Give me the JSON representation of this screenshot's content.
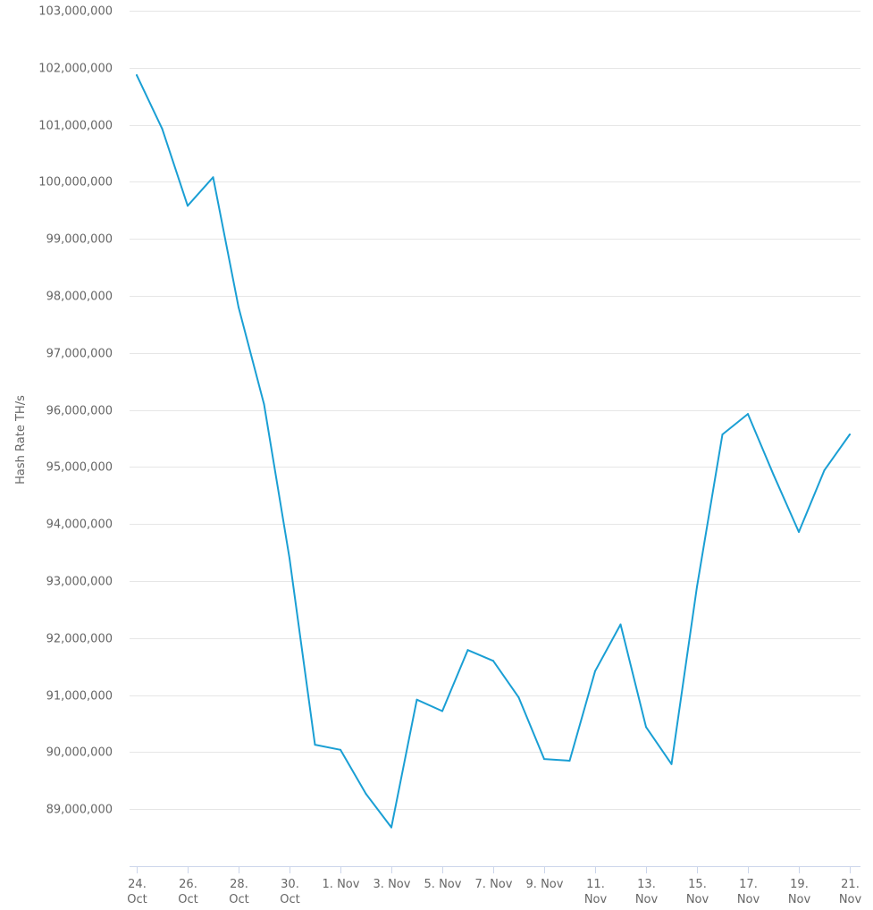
{
  "chart_data": {
    "type": "line",
    "ylabel": "Hash Rate TH/s",
    "ylim": [
      88000000,
      103000000
    ],
    "yticks": [
      89000000,
      90000000,
      91000000,
      92000000,
      93000000,
      94000000,
      95000000,
      96000000,
      97000000,
      98000000,
      99000000,
      100000000,
      101000000,
      102000000,
      103000000
    ],
    "ytick_labels": [
      "89,000,000",
      "90,000,000",
      "91,000,000",
      "92,000,000",
      "93,000,000",
      "94,000,000",
      "95,000,000",
      "96,000,000",
      "97,000,000",
      "98,000,000",
      "99,000,000",
      "100,000,000",
      "101,000,000",
      "102,000,000",
      "103,000,000"
    ],
    "grid": true,
    "xticks": [
      {
        "date": "2022-10-24",
        "label": [
          "24.",
          "Oct"
        ]
      },
      {
        "date": "2022-10-26",
        "label": [
          "26.",
          "Oct"
        ]
      },
      {
        "date": "2022-10-28",
        "label": [
          "28.",
          "Oct"
        ]
      },
      {
        "date": "2022-10-30",
        "label": [
          "30.",
          "Oct"
        ]
      },
      {
        "date": "2022-11-01",
        "label": [
          "1. Nov"
        ]
      },
      {
        "date": "2022-11-03",
        "label": [
          "3. Nov"
        ]
      },
      {
        "date": "2022-11-05",
        "label": [
          "5. Nov"
        ]
      },
      {
        "date": "2022-11-07",
        "label": [
          "7. Nov"
        ]
      },
      {
        "date": "2022-11-09",
        "label": [
          "9. Nov"
        ]
      },
      {
        "date": "2022-11-11",
        "label": [
          "11.",
          "Nov"
        ]
      },
      {
        "date": "2022-11-13",
        "label": [
          "13.",
          "Nov"
        ]
      },
      {
        "date": "2022-11-15",
        "label": [
          "15.",
          "Nov"
        ]
      },
      {
        "date": "2022-11-17",
        "label": [
          "17.",
          "Nov"
        ]
      },
      {
        "date": "2022-11-19",
        "label": [
          "19.",
          "Nov"
        ]
      },
      {
        "date": "2022-11-21",
        "label": [
          "21.",
          "Nov"
        ]
      }
    ],
    "series": [
      {
        "color": "#1a9fd4",
        "x": [
          "2022-10-24",
          "2022-10-25",
          "2022-10-26",
          "2022-10-27",
          "2022-10-28",
          "2022-10-29",
          "2022-10-30",
          "2022-10-31",
          "2022-11-01",
          "2022-11-02",
          "2022-11-03",
          "2022-11-04",
          "2022-11-05",
          "2022-11-06",
          "2022-11-07",
          "2022-11-08",
          "2022-11-09",
          "2022-11-10",
          "2022-11-11",
          "2022-11-12",
          "2022-11-13",
          "2022-11-14",
          "2022-11-15",
          "2022-11-16",
          "2022-11-17",
          "2022-11-18",
          "2022-11-19",
          "2022-11-20",
          "2022-11-21"
        ],
        "values": [
          101870000,
          100930000,
          99580000,
          100080000,
          97800000,
          96100000,
          93400000,
          90130000,
          90040000,
          89270000,
          88680000,
          90920000,
          90720000,
          91790000,
          91600000,
          90960000,
          89880000,
          89850000,
          91420000,
          92240000,
          90440000,
          89790000,
          92900000,
          95570000,
          95930000,
          94870000,
          93860000,
          94940000,
          95570000
        ]
      }
    ]
  }
}
